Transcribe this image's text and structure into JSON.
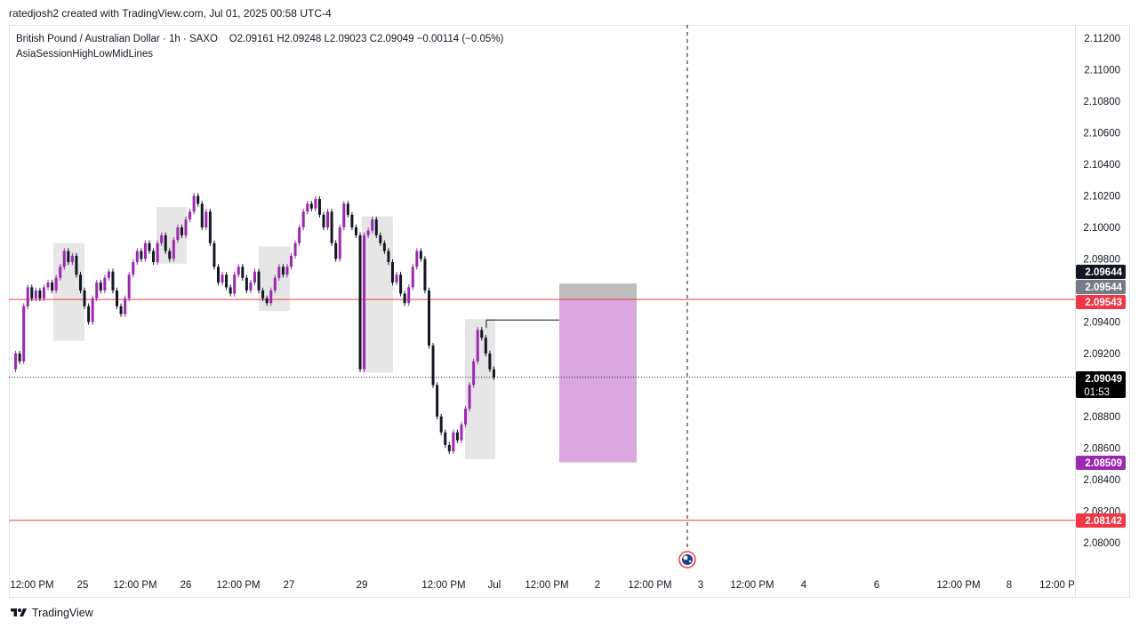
{
  "header": {
    "text": "ratedjosh2 created with TradingView.com, Jul 01, 2025 00:58 UTC-4"
  },
  "legend": {
    "symbol": "British Pound / Australian Dollar · 1h · SAXO",
    "ohlc": "O2.09161  H2.09248  L2.09023  C2.09049  −0.00114 (−0.05%)",
    "indicator": "AsiaSessionHighLowMidLines"
  },
  "footer": {
    "brand": "TradingView"
  },
  "chart_data": {
    "type": "candlestick",
    "symbol": "GBPAUD",
    "interval": "1h",
    "y_axis": {
      "min": 2.079,
      "max": 2.113,
      "ticks": [
        "2.11200",
        "2.11000",
        "2.10800",
        "2.10600",
        "2.10400",
        "2.10200",
        "2.10000",
        "2.09800",
        "2.09400",
        "2.09200",
        "2.08800",
        "2.08600",
        "2.08400",
        "2.08200",
        "2.08000"
      ]
    },
    "x_axis": {
      "labels": [
        "12:00 PM",
        "25",
        "12:00 PM",
        "26",
        "12:00 PM",
        "27",
        "29",
        "12:00 PM",
        "Jul",
        "12:00 PM",
        "2",
        "12:00 PM",
        "3",
        "12:00 PM",
        "4",
        "6",
        "12:00 PM",
        "8",
        "12:00 P"
      ]
    },
    "price_labels": [
      {
        "value": "2.09644",
        "color": "#131722"
      },
      {
        "value": "2.09544",
        "color": "#787b86"
      },
      {
        "value": "2.09543",
        "color": "#f23645"
      },
      {
        "value": "2.09049",
        "sub": "01:53",
        "color": "#000000"
      },
      {
        "value": "2.08509",
        "color": "#9c27b0"
      },
      {
        "value": "2.08142",
        "color": "#f23645"
      }
    ],
    "horizontal_lines": [
      {
        "price": 2.09543,
        "color": "#f23645",
        "style": "solid"
      },
      {
        "price": 2.08142,
        "color": "#f23645",
        "style": "solid"
      },
      {
        "price": 2.09049,
        "color": "#131722",
        "style": "dotted"
      }
    ],
    "zones": [
      {
        "name": "target-gray",
        "top": 2.09644,
        "bottom": 2.09544,
        "color": "#bdbdbd"
      },
      {
        "name": "range-purple",
        "top": 2.09544,
        "bottom": 2.08509,
        "color": "#d8a8de"
      }
    ],
    "colors": {
      "bull": "#9c27b0",
      "bear": "#131722",
      "session_box": "#e6e6e6",
      "grid": "#ffffff",
      "vline": "#131722"
    }
  }
}
